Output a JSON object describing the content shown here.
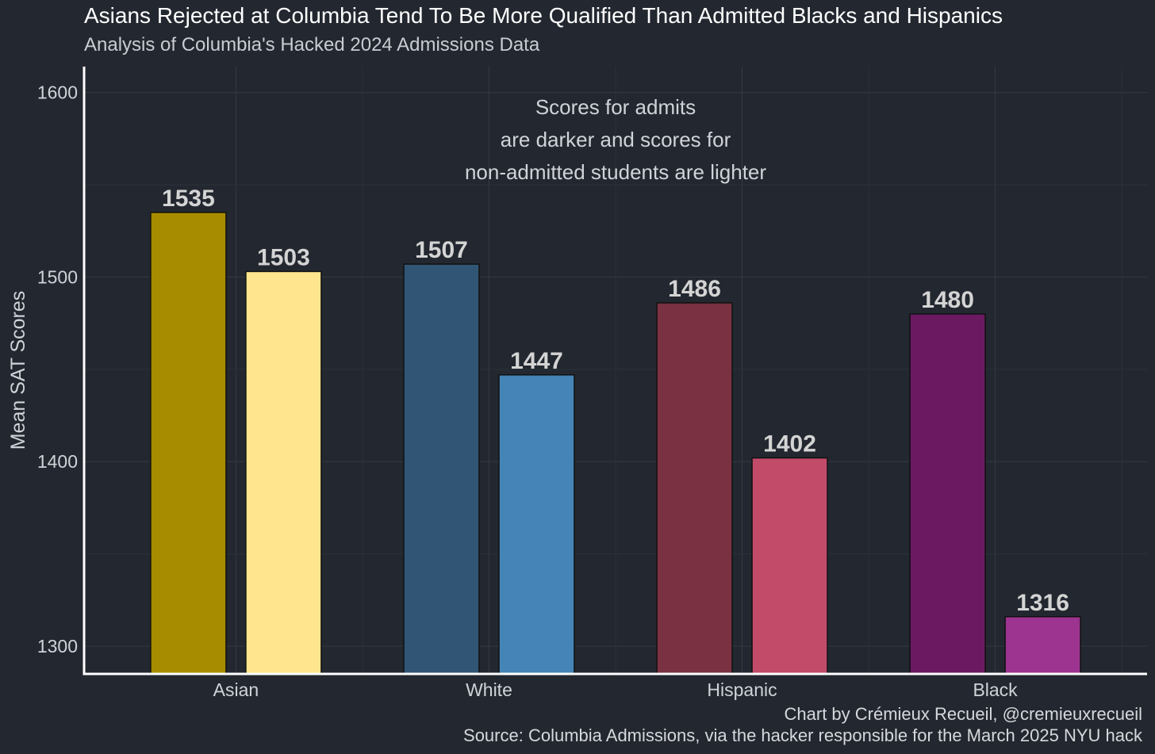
{
  "title": "Asians Rejected at Columbia Tend To Be More Qualified Than Admitted Blacks and Hispanics",
  "subtitle": "Analysis of Columbia's Hacked 2024 Admissions Data",
  "caption": {
    "credit": "Chart by Crémieux Recueil, @cremieuxrecueil",
    "source": "Source: Columbia Admissions, via the hacker responsible for the March 2025 NYU hack"
  },
  "colors": {
    "background": "#232830",
    "grid": "#353a42",
    "axis": "#ffffff",
    "text": "#d0d3d8",
    "label": "#d4d4d4"
  },
  "chart_data": {
    "type": "bar",
    "categories": [
      "Asian",
      "White",
      "Hispanic",
      "Black"
    ],
    "series": [
      {
        "values": [
          1535,
          1507,
          1486,
          1480
        ],
        "colors": [
          "#a88c00",
          "#315574",
          "#7a3243",
          "#6b1a62"
        ]
      },
      {
        "values": [
          1503,
          1447,
          1402,
          1316
        ],
        "colors": [
          "#ffe68e",
          "#4584b6",
          "#c14b69",
          "#9c3490"
        ]
      }
    ],
    "ylabel": "Mean SAT Scores",
    "xlabel": "",
    "ylim": [
      1285,
      1614
    ],
    "yticks": [
      1300,
      1400,
      1500,
      1600
    ],
    "grid": true,
    "annotation": [
      "Scores for admits",
      "are darker and scores for",
      "non-admitted students are lighter"
    ]
  }
}
